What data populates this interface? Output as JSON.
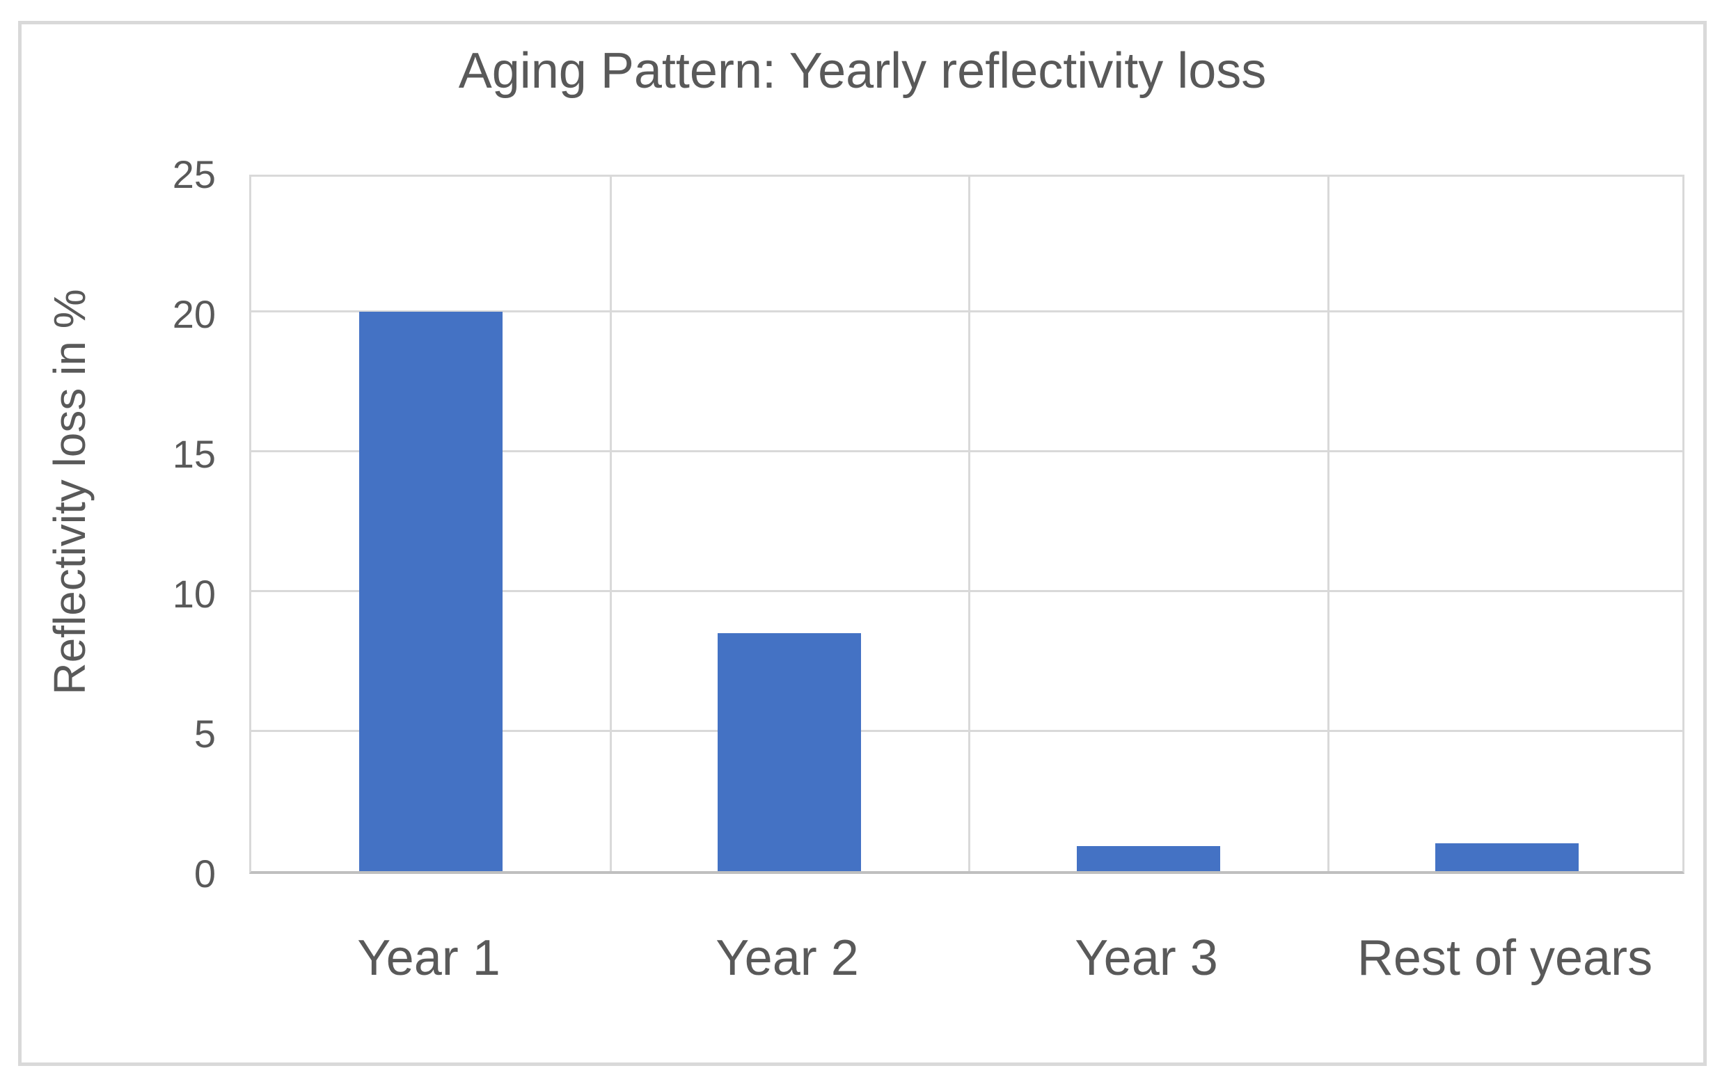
{
  "chart_data": {
    "type": "bar",
    "title": "Aging Pattern: Yearly reflectivity loss",
    "categories": [
      "Year 1",
      "Year 2",
      "Year 3",
      "Rest of years"
    ],
    "values": [
      20,
      8.5,
      0.9,
      1
    ],
    "xlabel": "",
    "ylabel": "Reflectivity loss in %",
    "ylim": [
      0,
      25
    ],
    "yticks": [
      0,
      5,
      10,
      15,
      20,
      25
    ],
    "grid": true,
    "legend": false,
    "colors": {
      "bar": "#4472C4",
      "gridline": "#D9D9D9",
      "axis_baseline": "#BFBFBF",
      "text": "#595959",
      "frame_border": "#D9D9D9"
    }
  }
}
